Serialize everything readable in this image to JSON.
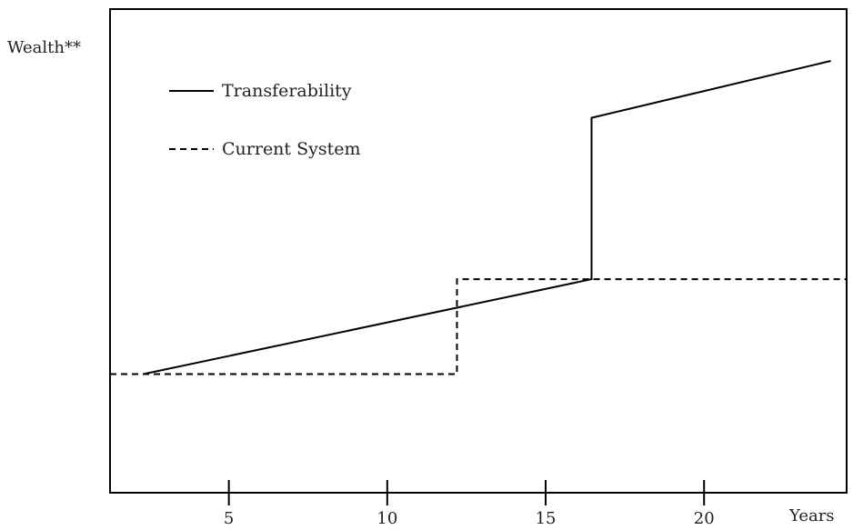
{
  "chart_data": {
    "type": "line",
    "title": "",
    "xlabel": "Years",
    "ylabel": "Wealth**",
    "xlim": [
      1.25,
      24.5
    ],
    "ylim": [
      0,
      100
    ],
    "x_ticks": [
      5,
      10,
      15,
      20
    ],
    "grid": false,
    "legend_position": "top-left",
    "series": [
      {
        "name": "Transferability",
        "style": "solid",
        "color": "#000000",
        "x": [
          2.3,
          16.45,
          16.45,
          24.0
        ],
        "y": [
          25,
          45,
          79,
          91
        ]
      },
      {
        "name": "Current System",
        "style": "dashed",
        "color": "#000000",
        "x": [
          1.25,
          12.2,
          12.2,
          24.5
        ],
        "y": [
          25,
          25,
          45,
          45
        ]
      }
    ]
  }
}
